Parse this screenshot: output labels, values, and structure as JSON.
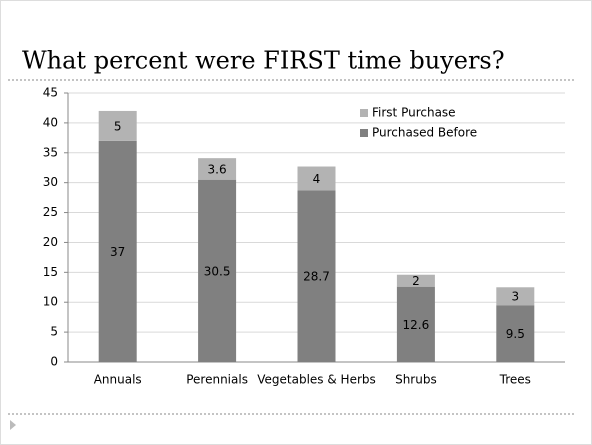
{
  "chart_data": {
    "type": "stacked_bar",
    "title": "What percent were FIRST time buyers?",
    "categories": [
      "Annuals",
      "Perennials",
      "Vegetables & Herbs",
      "Shrubs",
      "Trees"
    ],
    "series": [
      {
        "name": "Purchased Before",
        "color": "#808080",
        "values": [
          37,
          30.5,
          28.7,
          12.6,
          9.5
        ]
      },
      {
        "name": "First Purchase",
        "color": "#b3b3b3",
        "values": [
          5,
          3.6,
          4,
          2,
          3
        ]
      }
    ],
    "ylim": [
      0,
      45
    ],
    "yticks": [
      0,
      5,
      10,
      15,
      20,
      25,
      30,
      35,
      40,
      45
    ],
    "grid": true,
    "legend": "top-right"
  }
}
